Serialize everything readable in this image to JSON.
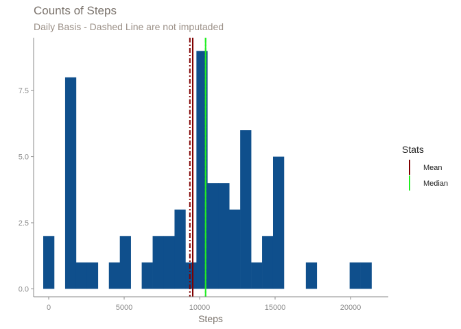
{
  "chart_data": {
    "type": "bar",
    "title": "Counts of Steps",
    "subtitle": "Daily Basis - Dashed Line are not imputaded",
    "xlabel": "Steps",
    "ylabel": "",
    "xlim": [
      -1000,
      22500
    ],
    "ylim": [
      -0.3,
      9.5
    ],
    "xticks": [
      0,
      5000,
      10000,
      15000,
      20000
    ],
    "xtick_labels": [
      "0",
      "5000",
      "10000",
      "15000",
      "20000"
    ],
    "yticks": [
      0,
      2.5,
      5,
      7.5
    ],
    "ytick_labels": [
      "0.0",
      "2.5",
      "5.0",
      "7.5"
    ],
    "bin_width": 725,
    "bins": [
      {
        "x0": -363,
        "count": 2
      },
      {
        "x0": 1088,
        "count": 8
      },
      {
        "x0": 1813,
        "count": 1
      },
      {
        "x0": 2538,
        "count": 1
      },
      {
        "x0": 3988,
        "count": 1
      },
      {
        "x0": 4713,
        "count": 2
      },
      {
        "x0": 6163,
        "count": 1
      },
      {
        "x0": 6888,
        "count": 2
      },
      {
        "x0": 7613,
        "count": 2
      },
      {
        "x0": 8338,
        "count": 3
      },
      {
        "x0": 9063,
        "count": 1
      },
      {
        "x0": 9788,
        "count": 9
      },
      {
        "x0": 10513,
        "count": 4
      },
      {
        "x0": 11238,
        "count": 4
      },
      {
        "x0": 11963,
        "count": 3
      },
      {
        "x0": 12688,
        "count": 6
      },
      {
        "x0": 13413,
        "count": 1
      },
      {
        "x0": 14138,
        "count": 2
      },
      {
        "x0": 14863,
        "count": 5
      },
      {
        "x0": 17038,
        "count": 1
      },
      {
        "x0": 19938,
        "count": 1
      },
      {
        "x0": 20663,
        "count": 1
      }
    ],
    "bar_color": "#0f4f8c",
    "vlines": [
      {
        "stat": "Mean",
        "x": 9354,
        "style": "dashed",
        "color": "#800000"
      },
      {
        "stat": "Median",
        "x": 10395,
        "style": "dashed",
        "color": "#22ee22"
      },
      {
        "stat": "Mean",
        "x": 9544,
        "style": "solid",
        "color": "#800000"
      },
      {
        "stat": "Median",
        "x": 10395,
        "style": "solid",
        "color": "#22ee22"
      }
    ],
    "grid": false,
    "legend": {
      "title": "Stats",
      "position": "right",
      "entries": [
        {
          "label": "Mean",
          "color": "#800000"
        },
        {
          "label": "Median",
          "color": "#22ee22"
        }
      ]
    }
  }
}
